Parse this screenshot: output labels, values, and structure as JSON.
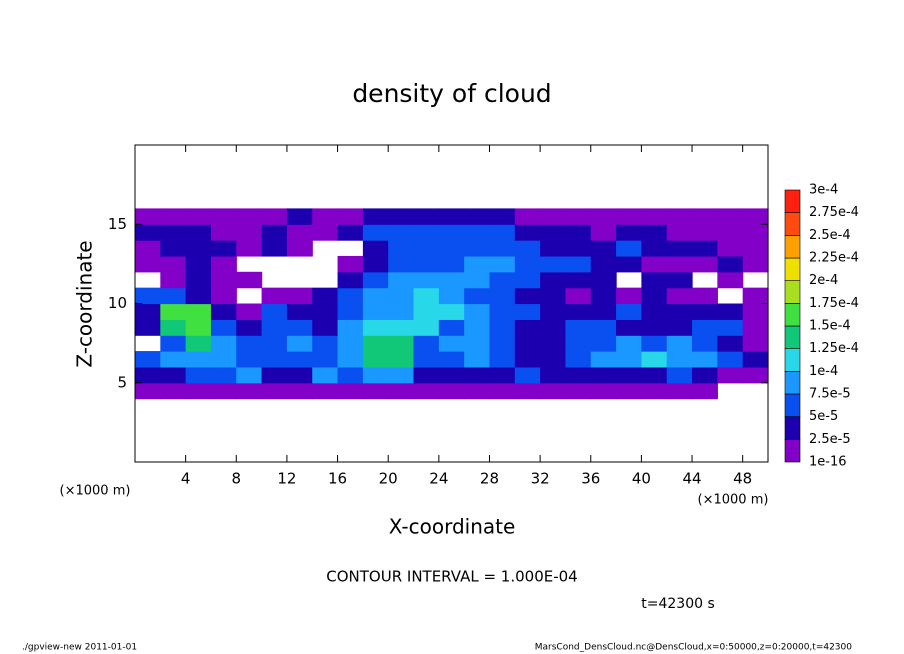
{
  "chart_data": {
    "type": "heatmap",
    "title": "density of cloud",
    "x_label": "X-coordinate",
    "y_label": "Z-coordinate",
    "x_unit": "(×1000 m)",
    "y_unit": "(×1000 m)",
    "annotation": "CONTOUR INTERVAL = 1.000E-04",
    "time": "t=42300 s",
    "footer_left": "./gpview-new   2011-01-01",
    "footer_right": "MarsCond_DensCloud.nc@DensCloud,x=0:50000,z=0:20000,t=42300",
    "xlim": [
      0,
      50
    ],
    "xticks": [
      4,
      8,
      12,
      16,
      20,
      24,
      28,
      32,
      36,
      40,
      44,
      48
    ],
    "ylim": [
      0,
      20
    ],
    "yticks": [
      5,
      10,
      15
    ],
    "x": [
      1,
      3,
      5,
      7,
      9,
      11,
      13,
      15,
      17,
      19,
      21,
      23,
      25,
      27,
      29,
      31,
      33,
      35,
      37,
      39,
      41,
      43,
      45,
      47,
      49
    ],
    "y": [
      4.5,
      5.5,
      6.5,
      7.5,
      8.5,
      9.5,
      10.5,
      11.5,
      12.5,
      13.5,
      14.5,
      15.5
    ],
    "z": [
      [
        1e-05,
        1e-05,
        1e-05,
        1e-05,
        1e-05,
        1e-05,
        1e-05,
        1e-05,
        1e-05,
        1e-05,
        1e-05,
        1e-05,
        1e-05,
        1e-05,
        1e-05,
        1e-05,
        1e-05,
        1e-05,
        1e-05,
        1e-05,
        1e-05,
        1e-05,
        1e-05,
        null,
        null
      ],
      [
        3e-05,
        3e-05,
        6e-05,
        6e-05,
        8.5e-05,
        3e-05,
        3e-05,
        8.5e-05,
        6e-05,
        8.5e-05,
        8.5e-05,
        3e-05,
        3e-05,
        3e-05,
        3e-05,
        6e-05,
        3e-05,
        3e-05,
        3e-05,
        3e-05,
        3e-05,
        6e-05,
        3e-05,
        1e-05,
        1e-05
      ],
      [
        6e-05,
        8.5e-05,
        8.5e-05,
        8.5e-05,
        6e-05,
        6e-05,
        6e-05,
        6e-05,
        8.5e-05,
        0.00014,
        0.00014,
        6e-05,
        6e-05,
        8.5e-05,
        6e-05,
        3e-05,
        3e-05,
        6e-05,
        8.5e-05,
        8.5e-05,
        0.00011,
        8.5e-05,
        8.5e-05,
        6e-05,
        3e-05
      ],
      [
        null,
        6e-05,
        0.00014,
        8.5e-05,
        6e-05,
        6e-05,
        8.5e-05,
        6e-05,
        8.5e-05,
        0.00014,
        0.00014,
        6e-05,
        8.5e-05,
        8.5e-05,
        6e-05,
        3e-05,
        3e-05,
        6e-05,
        6e-05,
        8.5e-05,
        6e-05,
        8.5e-05,
        6e-05,
        3e-05,
        1e-05
      ],
      [
        3e-05,
        0.00014,
        0.00016,
        6e-05,
        3e-05,
        6e-05,
        6e-05,
        3e-05,
        8.5e-05,
        0.00011,
        0.00011,
        0.00011,
        6e-05,
        8.5e-05,
        6e-05,
        3e-05,
        3e-05,
        6e-05,
        6e-05,
        3e-05,
        3e-05,
        3e-05,
        6e-05,
        6e-05,
        1e-05
      ],
      [
        3e-05,
        0.00016,
        0.00016,
        3e-05,
        1e-05,
        6e-05,
        3e-05,
        3e-05,
        6e-05,
        8.5e-05,
        8.5e-05,
        0.00011,
        0.00011,
        8.5e-05,
        6e-05,
        6e-05,
        3e-05,
        3e-05,
        3e-05,
        6e-05,
        3e-05,
        3e-05,
        3e-05,
        3e-05,
        1e-05
      ],
      [
        6e-05,
        6e-05,
        3e-05,
        1e-05,
        null,
        1e-05,
        1e-05,
        3e-05,
        6e-05,
        8.5e-05,
        8.5e-05,
        0.00011,
        8.5e-05,
        6e-05,
        6e-05,
        3e-05,
        3e-05,
        1e-05,
        3e-05,
        1e-05,
        3e-05,
        1e-05,
        1e-05,
        null,
        1e-05
      ],
      [
        null,
        1e-05,
        3e-05,
        1e-05,
        1e-05,
        null,
        null,
        null,
        3e-05,
        6e-05,
        8.5e-05,
        8.5e-05,
        8.5e-05,
        8.5e-05,
        6e-05,
        6e-05,
        3e-05,
        3e-05,
        3e-05,
        null,
        3e-05,
        3e-05,
        null,
        1e-05,
        null
      ],
      [
        1e-05,
        1e-05,
        3e-05,
        1e-05,
        null,
        null,
        null,
        null,
        1e-05,
        3e-05,
        6e-05,
        6e-05,
        6e-05,
        8.5e-05,
        8.5e-05,
        6e-05,
        6e-05,
        6e-05,
        3e-05,
        3e-05,
        1e-05,
        1e-05,
        1e-05,
        3e-05,
        1e-05
      ],
      [
        1e-05,
        3e-05,
        3e-05,
        3e-05,
        1e-05,
        3e-05,
        1e-05,
        null,
        null,
        3e-05,
        6e-05,
        6e-05,
        6e-05,
        6e-05,
        6e-05,
        6e-05,
        3e-05,
        3e-05,
        3e-05,
        6e-05,
        3e-05,
        3e-05,
        3e-05,
        1e-05,
        1e-05
      ],
      [
        3e-05,
        3e-05,
        3e-05,
        1e-05,
        1e-05,
        3e-05,
        1e-05,
        1e-05,
        3e-05,
        6e-05,
        6e-05,
        6e-05,
        6e-05,
        6e-05,
        6e-05,
        3e-05,
        3e-05,
        3e-05,
        1e-05,
        3e-05,
        3e-05,
        1e-05,
        1e-05,
        1e-05,
        1e-05
      ],
      [
        1e-05,
        1e-05,
        1e-05,
        1e-05,
        1e-05,
        1e-05,
        3e-05,
        1e-05,
        1e-05,
        3e-05,
        3e-05,
        3e-05,
        3e-05,
        3e-05,
        3e-05,
        1e-05,
        1e-05,
        1e-05,
        1e-05,
        1e-05,
        1e-05,
        1e-05,
        1e-05,
        1e-05,
        1e-05
      ]
    ],
    "levels": [
      1e-16,
      {
        "value": 2.5e-05,
        "label": "2.5e-5"
      },
      {
        "value": 5e-05,
        "label": "5e-5"
      },
      {
        "value": 7.5e-05,
        "label": "7.5e-5"
      },
      {
        "value": 0.0001,
        "label": "1e-4"
      },
      {
        "value": 0.000125,
        "label": "1.25e-4"
      },
      {
        "value": 0.00015,
        "label": "1.5e-4"
      },
      {
        "value": 0.000175,
        "label": "1.75e-4"
      },
      {
        "value": 0.0002,
        "label": "2e-4"
      },
      {
        "value": 0.000225,
        "label": "2.25e-4"
      },
      {
        "value": 0.00025,
        "label": "2.5e-4"
      },
      {
        "value": 0.000275,
        "label": "2.75e-4"
      },
      {
        "value": 0.0003,
        "label": "3e-4"
      }
    ],
    "colors": [
      "#8200c8",
      "#1c00b0",
      "#0a50f0",
      "#1a98ff",
      "#28d8e8",
      "#10c878",
      "#40e040",
      "#a8e020",
      "#f0e000",
      "#ffa000",
      "#ff4a10",
      "#ff2010",
      "#f89090"
    ]
  }
}
